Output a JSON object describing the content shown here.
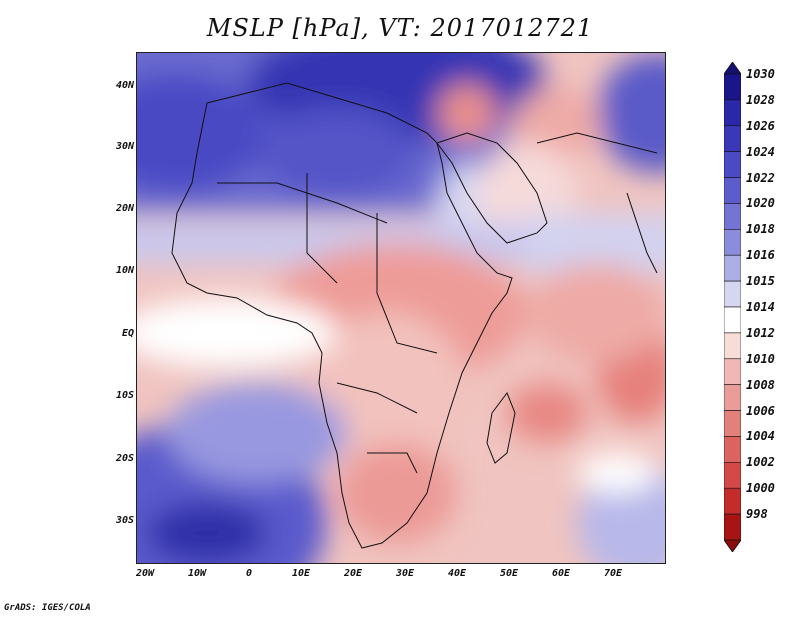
{
  "title": "MSLP [hPa], VT: 2017012721",
  "credit": "GrADS: IGES/COLA",
  "y_axis_labels": [
    "40N",
    "30N",
    "20N",
    "10N",
    "EQ",
    "10S",
    "20S",
    "30S"
  ],
  "x_axis_labels": [
    "20W",
    "10W",
    "0",
    "10E",
    "20E",
    "30E",
    "40E",
    "50E",
    "60E",
    "70E"
  ],
  "colorbar": {
    "levels": [
      "1030",
      "1028",
      "1026",
      "1024",
      "1022",
      "1020",
      "1018",
      "1016",
      "1015",
      "1014",
      "1012",
      "1010",
      "1008",
      "1006",
      "1004",
      "1002",
      "1000",
      "998"
    ],
    "colors": [
      "#1a168a",
      "#2a28a8",
      "#3a38b8",
      "#4a4ac4",
      "#5c5ccc",
      "#7474d4",
      "#8c8cdc",
      "#aeaee6",
      "#d6d6f2",
      "#ffffff",
      "#f8dcd8",
      "#f0b8b4",
      "#ea9c98",
      "#e2807c",
      "#dc6460",
      "#d44848",
      "#c42c2c",
      "#a81414"
    ],
    "max_arrow_color": "#121070",
    "min_arrow_color": "#8a0c0c"
  }
}
